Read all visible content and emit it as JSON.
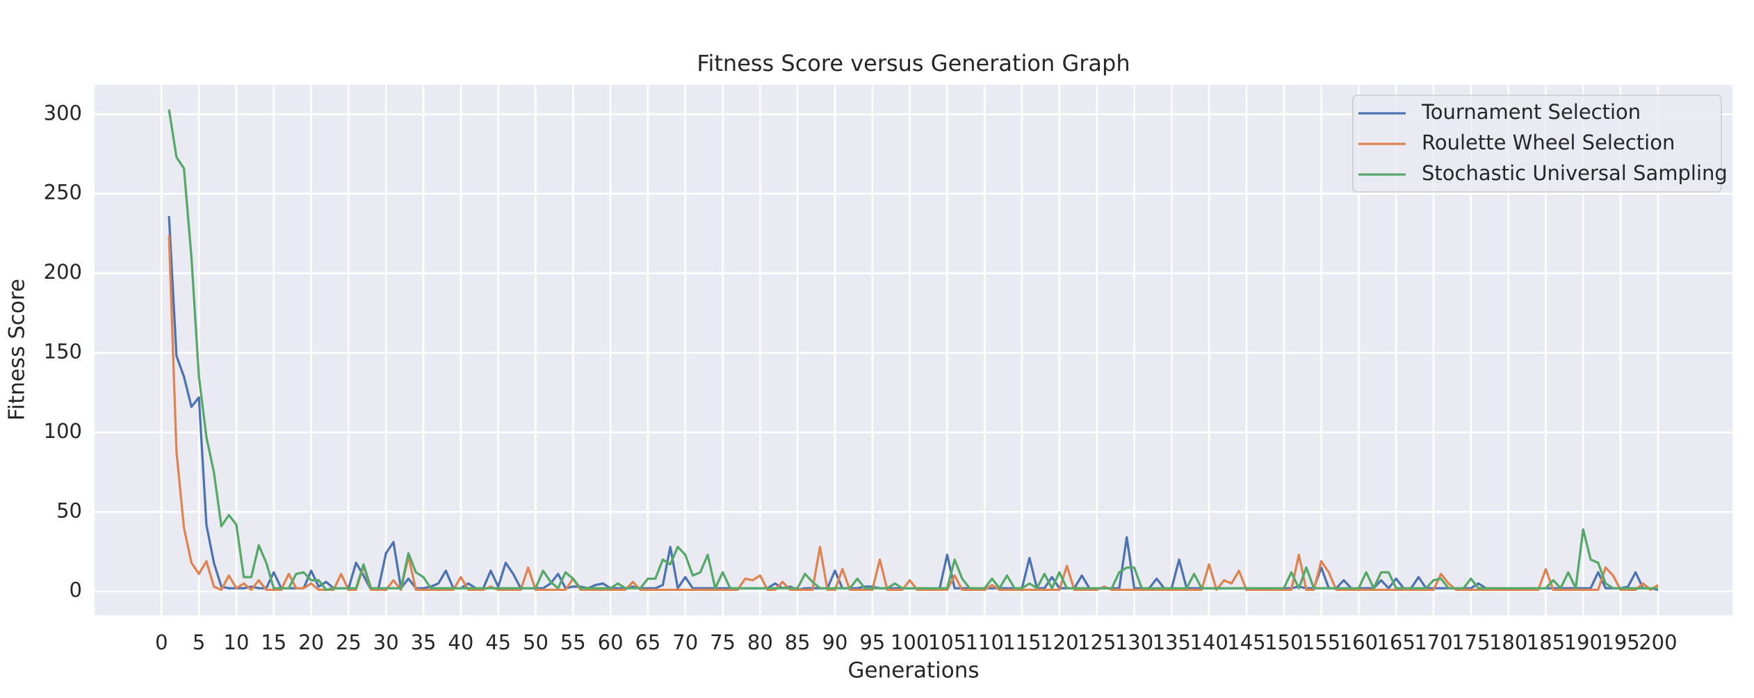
{
  "chart_data": {
    "type": "line",
    "title": "Fitness Score versus Generation Graph",
    "xlabel": "Generations",
    "ylabel": "Fitness Score",
    "x": [
      1,
      2,
      3,
      4,
      5,
      6,
      7,
      8,
      9,
      10,
      11,
      12,
      13,
      14,
      15,
      16,
      17,
      18,
      19,
      20,
      21,
      22,
      23,
      24,
      25,
      26,
      27,
      28,
      29,
      30,
      31,
      32,
      33,
      34,
      35,
      36,
      37,
      38,
      39,
      40,
      41,
      42,
      43,
      44,
      45,
      46,
      47,
      48,
      49,
      50,
      51,
      52,
      53,
      54,
      55,
      56,
      57,
      58,
      59,
      60,
      61,
      62,
      63,
      64,
      65,
      66,
      67,
      68,
      69,
      70,
      71,
      72,
      73,
      74,
      75,
      76,
      77,
      78,
      79,
      80,
      81,
      82,
      83,
      84,
      85,
      86,
      87,
      88,
      89,
      90,
      91,
      92,
      93,
      94,
      95,
      96,
      97,
      98,
      99,
      100,
      101,
      102,
      103,
      104,
      105,
      106,
      107,
      108,
      109,
      110,
      111,
      112,
      113,
      114,
      115,
      116,
      117,
      118,
      119,
      120,
      121,
      122,
      123,
      124,
      125,
      126,
      127,
      128,
      129,
      130,
      131,
      132,
      133,
      134,
      135,
      136,
      137,
      138,
      139,
      140,
      141,
      142,
      143,
      144,
      145,
      146,
      147,
      148,
      149,
      150,
      151,
      152,
      153,
      154,
      155,
      156,
      157,
      158,
      159,
      160,
      161,
      162,
      163,
      164,
      165,
      166,
      167,
      168,
      169,
      170,
      171,
      172,
      173,
      174,
      175,
      176,
      177,
      178,
      179,
      180,
      181,
      182,
      183,
      184,
      185,
      186,
      187,
      188,
      189,
      190,
      191,
      192,
      193,
      194,
      195,
      196,
      197,
      198,
      199,
      200
    ],
    "series": [
      {
        "name": "Tournament Selection",
        "color": "#4c72b0",
        "values": [
          236,
          148,
          135,
          116,
          122,
          42,
          18,
          3,
          2,
          2,
          2,
          3,
          2,
          2,
          12,
          2,
          2,
          2,
          2,
          13,
          3,
          6,
          2,
          2,
          2,
          18,
          10,
          1,
          2,
          24,
          31,
          2,
          8,
          2,
          2,
          3,
          5,
          13,
          2,
          2,
          5,
          2,
          2,
          13,
          3,
          18,
          11,
          2,
          2,
          2,
          2,
          5,
          11,
          2,
          3,
          3,
          2,
          4,
          5,
          2,
          2,
          2,
          3,
          2,
          2,
          2,
          4,
          28,
          2,
          9,
          2,
          2,
          2,
          2,
          2,
          2,
          2,
          2,
          2,
          2,
          2,
          5,
          2,
          3,
          1,
          2,
          2,
          2,
          2,
          13,
          2,
          2,
          2,
          3,
          3,
          2,
          2,
          2,
          2,
          2,
          2,
          2,
          2,
          2,
          23,
          2,
          2,
          2,
          2,
          2,
          2,
          2,
          2,
          2,
          2,
          21,
          2,
          2,
          9,
          2,
          2,
          2,
          10,
          2,
          2,
          2,
          2,
          2,
          34,
          2,
          2,
          2,
          8,
          2,
          2,
          20,
          2,
          2,
          2,
          2,
          2,
          2,
          2,
          2,
          2,
          2,
          2,
          2,
          2,
          2,
          2,
          3,
          2,
          2,
          15,
          2,
          2,
          7,
          2,
          2,
          2,
          2,
          7,
          2,
          8,
          2,
          2,
          9,
          2,
          2,
          2,
          2,
          2,
          2,
          2,
          5,
          2,
          2,
          2,
          2,
          2,
          2,
          2,
          2,
          2,
          2,
          2,
          2,
          2,
          2,
          2,
          12,
          2,
          2,
          2,
          3,
          12,
          2,
          2,
          1
        ]
      },
      {
        "name": "Roulette Wheel Selection",
        "color": "#dd8452",
        "values": [
          224,
          88,
          40,
          18,
          11,
          19,
          3,
          1,
          10,
          2,
          5,
          1,
          7,
          1,
          1,
          1,
          11,
          2,
          2,
          5,
          1,
          1,
          1,
          11,
          1,
          1,
          16,
          1,
          1,
          1,
          7,
          1,
          22,
          1,
          1,
          1,
          1,
          1,
          1,
          9,
          1,
          1,
          1,
          3,
          1,
          1,
          1,
          1,
          15,
          1,
          1,
          1,
          1,
          1,
          8,
          1,
          1,
          1,
          1,
          1,
          1,
          1,
          6,
          1,
          1,
          1,
          1,
          1,
          1,
          1,
          1,
          1,
          1,
          1,
          1,
          1,
          1,
          8,
          7,
          10,
          1,
          1,
          6,
          1,
          1,
          1,
          1,
          28,
          1,
          1,
          14,
          1,
          1,
          1,
          1,
          20,
          1,
          1,
          1,
          7,
          1,
          1,
          1,
          1,
          1,
          10,
          1,
          1,
          1,
          1,
          4,
          1,
          1,
          1,
          1,
          1,
          1,
          1,
          1,
          1,
          16,
          1,
          1,
          1,
          1,
          3,
          1,
          1,
          1,
          1,
          1,
          1,
          1,
          1,
          1,
          1,
          1,
          1,
          1,
          17,
          1,
          7,
          5,
          13,
          1,
          1,
          1,
          1,
          1,
          1,
          1,
          23,
          1,
          1,
          19,
          12,
          1,
          1,
          1,
          1,
          1,
          1,
          1,
          1,
          1,
          1,
          1,
          1,
          1,
          1,
          11,
          5,
          1,
          1,
          1,
          1,
          1,
          1,
          1,
          1,
          1,
          1,
          1,
          1,
          14,
          1,
          1,
          1,
          1,
          1,
          1,
          1,
          15,
          10,
          1,
          1,
          1,
          5,
          1,
          4
        ]
      },
      {
        "name": "Stochastic Universal Sampling",
        "color": "#55a868",
        "values": [
          303,
          273,
          266,
          210,
          135,
          97,
          75,
          41,
          48,
          42,
          9,
          9,
          29,
          18,
          2,
          2,
          2,
          11,
          12,
          7,
          7,
          1,
          2,
          2,
          2,
          2,
          17,
          2,
          2,
          2,
          2,
          2,
          24,
          12,
          9,
          2,
          2,
          2,
          2,
          2,
          2,
          2,
          2,
          2,
          2,
          2,
          2,
          2,
          2,
          2,
          13,
          6,
          2,
          12,
          8,
          2,
          2,
          2,
          2,
          2,
          5,
          2,
          2,
          2,
          8,
          8,
          20,
          17,
          28,
          23,
          10,
          12,
          23,
          2,
          12,
          2,
          2,
          2,
          2,
          2,
          2,
          2,
          2,
          2,
          2,
          11,
          6,
          2,
          2,
          2,
          2,
          2,
          8,
          2,
          2,
          2,
          2,
          5,
          2,
          2,
          2,
          2,
          2,
          2,
          2,
          20,
          8,
          2,
          2,
          2,
          8,
          2,
          10,
          2,
          2,
          5,
          2,
          11,
          2,
          12,
          2,
          2,
          2,
          2,
          2,
          2,
          2,
          12,
          15,
          15,
          2,
          2,
          2,
          2,
          2,
          2,
          2,
          11,
          2,
          2,
          2,
          2,
          2,
          2,
          2,
          2,
          2,
          2,
          2,
          2,
          12,
          2,
          15,
          2,
          2,
          2,
          2,
          2,
          2,
          2,
          12,
          2,
          12,
          12,
          2,
          2,
          2,
          2,
          2,
          7,
          8,
          2,
          2,
          2,
          8,
          2,
          2,
          2,
          2,
          2,
          2,
          2,
          2,
          2,
          2,
          7,
          2,
          12,
          2,
          39,
          20,
          18,
          5,
          2,
          2,
          2,
          2,
          2,
          2,
          2
        ]
      }
    ],
    "xlim": [
      -8.95,
      209.95
    ],
    "ylim": [
      -15,
      318.5
    ],
    "xticks": [
      0,
      5,
      10,
      15,
      20,
      25,
      30,
      35,
      40,
      45,
      50,
      55,
      60,
      65,
      70,
      75,
      80,
      85,
      90,
      95,
      100,
      105,
      110,
      115,
      120,
      125,
      130,
      135,
      140,
      145,
      150,
      155,
      160,
      165,
      170,
      175,
      180,
      185,
      190,
      195,
      200
    ],
    "yticks": [
      0,
      50,
      100,
      150,
      200,
      250,
      300
    ],
    "grid": true,
    "legend": "upper right"
  }
}
